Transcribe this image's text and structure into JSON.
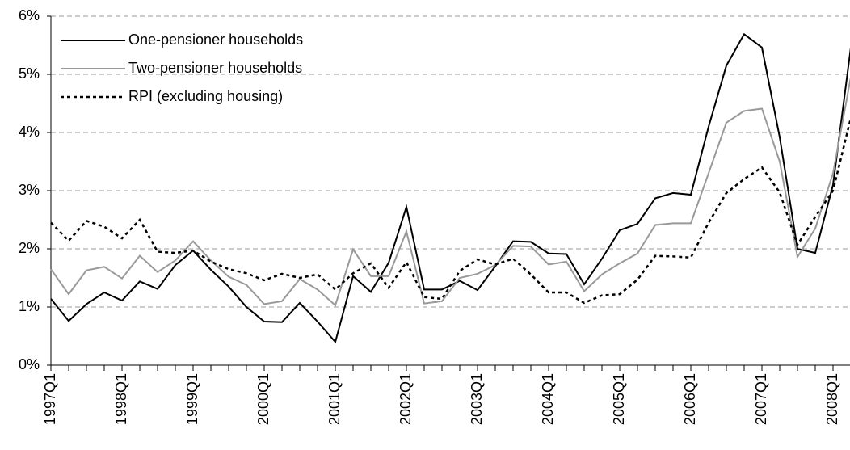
{
  "chart_data": {
    "type": "line",
    "categories": [
      "1997Q1",
      null,
      null,
      null,
      "1998Q1",
      null,
      null,
      null,
      "1999Q1",
      null,
      null,
      null,
      "2000Q1",
      null,
      null,
      null,
      "2001Q1",
      null,
      null,
      null,
      "2002Q1",
      null,
      null,
      null,
      "2003Q1",
      null,
      null,
      null,
      "2004Q1",
      null,
      null,
      null,
      "2005Q1",
      null,
      null,
      null,
      "2006Q1",
      null,
      null,
      null,
      "2007Q1",
      null,
      null,
      null,
      "2008Q1",
      null
    ],
    "series": [
      {
        "name": "One-pensioner households",
        "color": "#000000",
        "dash": "solid",
        "values": [
          1.14,
          0.76,
          1.05,
          1.25,
          1.11,
          1.44,
          1.31,
          1.72,
          1.97,
          1.64,
          1.35,
          1.0,
          0.75,
          0.74,
          1.07,
          0.75,
          0.4,
          1.53,
          1.26,
          1.76,
          2.72,
          1.3,
          1.3,
          1.45,
          1.29,
          1.7,
          2.13,
          2.12,
          1.92,
          1.91,
          1.39,
          1.83,
          2.32,
          2.43,
          2.87,
          2.96,
          2.93,
          4.1,
          5.15,
          5.69,
          5.46,
          3.92,
          2.0,
          1.93,
          3.1,
          5.46
        ]
      },
      {
        "name": "Two-pensioner households",
        "color": "#999999",
        "dash": "solid",
        "values": [
          1.65,
          1.22,
          1.63,
          1.69,
          1.49,
          1.88,
          1.6,
          1.8,
          2.13,
          1.8,
          1.52,
          1.38,
          1.05,
          1.1,
          1.48,
          1.3,
          1.03,
          1.99,
          1.53,
          1.53,
          2.3,
          1.06,
          1.1,
          1.5,
          1.57,
          1.72,
          2.05,
          2.04,
          1.73,
          1.78,
          1.27,
          1.56,
          1.75,
          1.92,
          2.41,
          2.44,
          2.44,
          3.3,
          4.17,
          4.37,
          4.41,
          3.5,
          1.86,
          2.35,
          3.3,
          4.95
        ]
      },
      {
        "name": "RPI (excluding housing)",
        "color": "#000000",
        "dash": "dotted",
        "values": [
          2.45,
          2.14,
          2.48,
          2.38,
          2.18,
          2.5,
          1.95,
          1.93,
          1.97,
          1.78,
          1.65,
          1.58,
          1.46,
          1.57,
          1.5,
          1.56,
          1.3,
          1.58,
          1.75,
          1.33,
          1.77,
          1.17,
          1.14,
          1.62,
          1.82,
          1.73,
          1.83,
          1.56,
          1.25,
          1.25,
          1.07,
          1.2,
          1.22,
          1.47,
          1.88,
          1.87,
          1.85,
          2.45,
          2.96,
          3.2,
          3.4,
          2.97,
          2.07,
          2.55,
          3.0,
          4.25
        ]
      }
    ],
    "ylim": [
      0,
      6
    ],
    "yticks": [
      {
        "value": 0,
        "label": "0%"
      },
      {
        "value": 1,
        "label": "1%"
      },
      {
        "value": 2,
        "label": "2%"
      },
      {
        "value": 3,
        "label": "3%"
      },
      {
        "value": 4,
        "label": "4%"
      },
      {
        "value": 5,
        "label": "5%"
      },
      {
        "value": 6,
        "label": "6%"
      }
    ],
    "grid": true,
    "legend": "top-left"
  }
}
